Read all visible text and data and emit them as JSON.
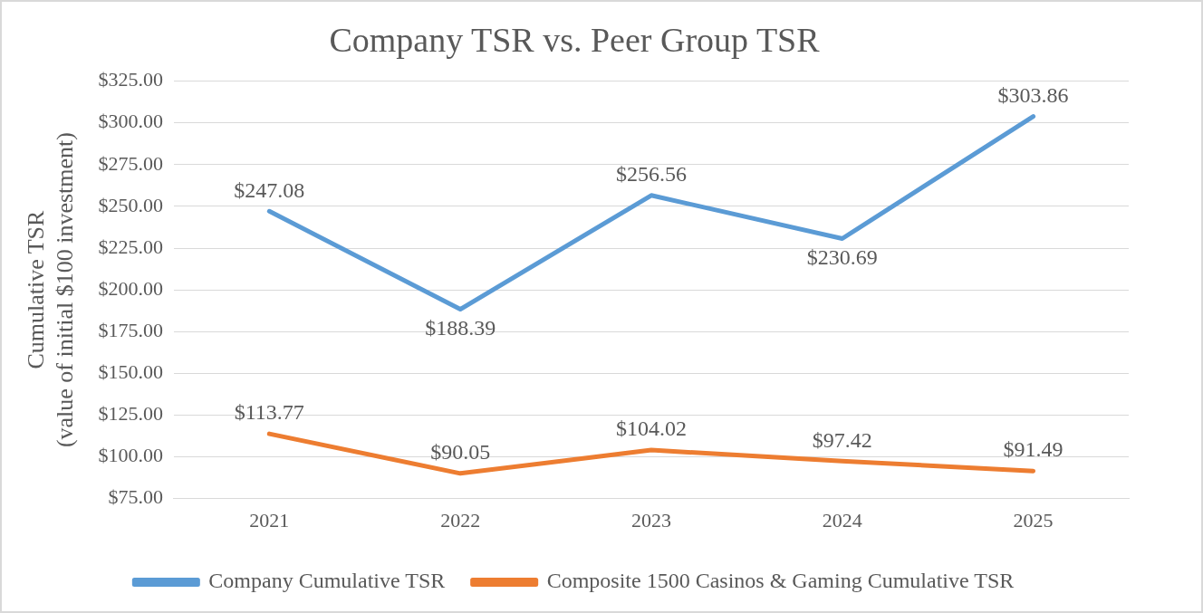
{
  "chart_data": {
    "type": "line",
    "title": "Company TSR vs. Peer Group TSR",
    "ylabel": "Cumulative TSR\n(value of initial $100 investment)",
    "categories": [
      "2021",
      "2022",
      "2023",
      "2024",
      "2025"
    ],
    "series": [
      {
        "name": "Company Cumulative TSR",
        "color": "#5b9bd5",
        "values": [
          247.08,
          188.39,
          256.56,
          230.69,
          303.86
        ],
        "value_labels": [
          "$247.08",
          "$188.39",
          "$256.56",
          "$230.69",
          "$303.86"
        ]
      },
      {
        "name": "Composite 1500 Casinos & Gaming Cumulative TSR",
        "color": "#ed7d31",
        "values": [
          113.77,
          90.05,
          104.02,
          97.42,
          91.49
        ],
        "value_labels": [
          "$113.77",
          "$90.05",
          "$104.02",
          "$97.42",
          "$91.49"
        ]
      }
    ],
    "ylim": [
      75,
      325
    ],
    "yticks": [
      {
        "value": 75,
        "label": "$75.00"
      },
      {
        "value": 100,
        "label": "$100.00"
      },
      {
        "value": 125,
        "label": "$125.00"
      },
      {
        "value": 150,
        "label": "$150.00"
      },
      {
        "value": 175,
        "label": "$175.00"
      },
      {
        "value": 200,
        "label": "$200.00"
      },
      {
        "value": 225,
        "label": "$225.00"
      },
      {
        "value": 250,
        "label": "$250.00"
      },
      {
        "value": 275,
        "label": "$275.00"
      },
      {
        "value": 300,
        "label": "$300.00"
      },
      {
        "value": 325,
        "label": "$325.00"
      }
    ],
    "grid": "y",
    "legend": "bottom",
    "marker": "none",
    "line_style": "solid"
  }
}
